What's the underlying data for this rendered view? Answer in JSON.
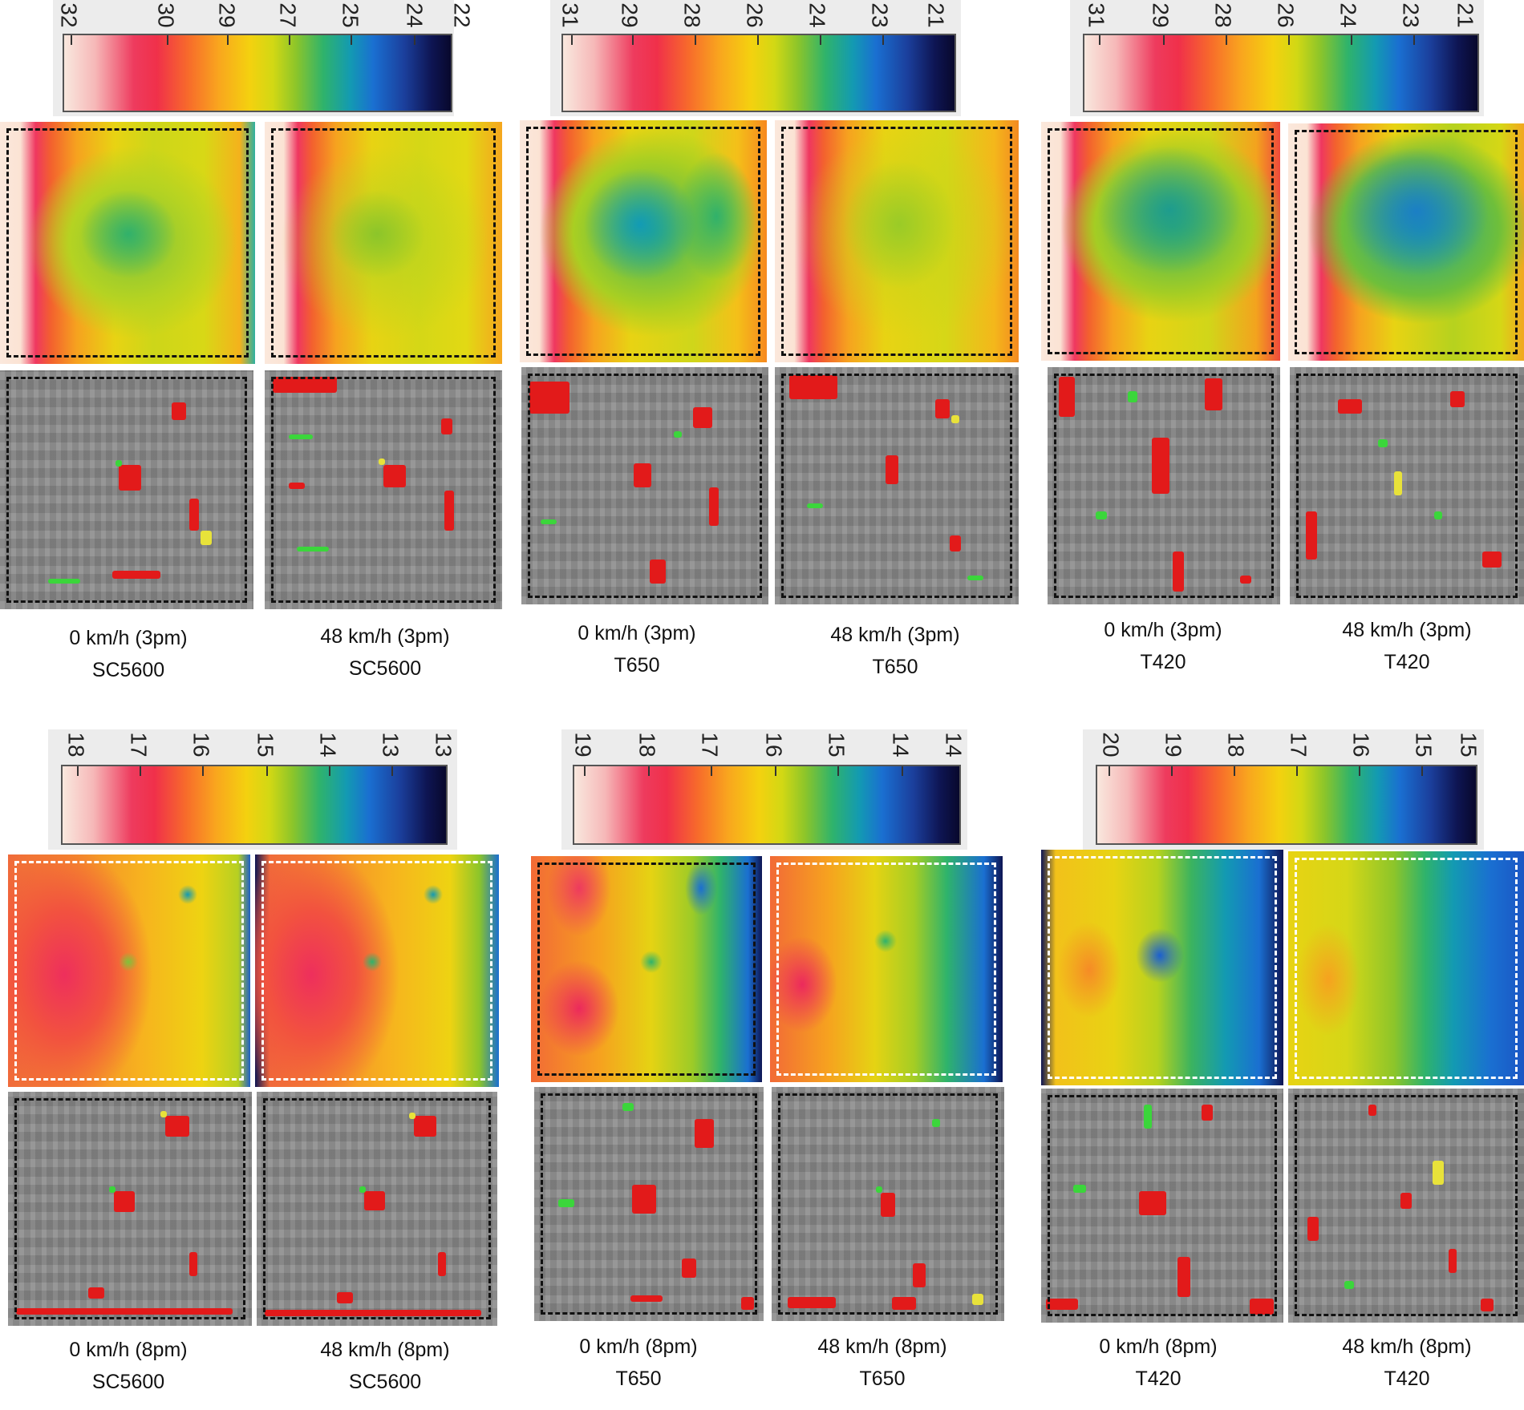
{
  "colorbars": [
    {
      "id": "sc5600-3pm",
      "ticks": [
        "32",
        "30",
        "29",
        "27",
        "25",
        "24",
        "22"
      ]
    },
    {
      "id": "t650-3pm",
      "ticks": [
        "31",
        "29",
        "28",
        "26",
        "24",
        "23",
        "21"
      ]
    },
    {
      "id": "t420-3pm",
      "ticks": [
        "31",
        "29",
        "28",
        "26",
        "24",
        "23",
        "21"
      ]
    },
    {
      "id": "sc5600-8pm",
      "ticks": [
        "18",
        "17",
        "16",
        "15",
        "14",
        "13",
        "13"
      ]
    },
    {
      "id": "t650-8pm",
      "ticks": [
        "19",
        "18",
        "17",
        "16",
        "15",
        "14",
        "14"
      ]
    },
    {
      "id": "t420-8pm",
      "ticks": [
        "20",
        "19",
        "18",
        "17",
        "16",
        "15",
        "15"
      ]
    }
  ],
  "captions": [
    {
      "speed": "0 km/h (3pm)",
      "camera": "SC5600"
    },
    {
      "speed": "48 km/h (3pm)",
      "camera": "SC5600"
    },
    {
      "speed": "0 km/h (3pm)",
      "camera": "T650"
    },
    {
      "speed": "48 km/h (3pm)",
      "camera": "T650"
    },
    {
      "speed": "0 km/h (3pm)",
      "camera": "T420"
    },
    {
      "speed": "48 km/h (3pm)",
      "camera": "T420"
    },
    {
      "speed": "0 km/h (8pm)",
      "camera": "SC5600"
    },
    {
      "speed": "48 km/h (8pm)",
      "camera": "SC5600"
    },
    {
      "speed": "0 km/h (8pm)",
      "camera": "T650"
    },
    {
      "speed": "48 km/h (8pm)",
      "camera": "T650"
    },
    {
      "speed": "0 km/h (8pm)",
      "camera": "T420"
    },
    {
      "speed": "48 km/h (8pm)",
      "camera": "T420"
    }
  ]
}
